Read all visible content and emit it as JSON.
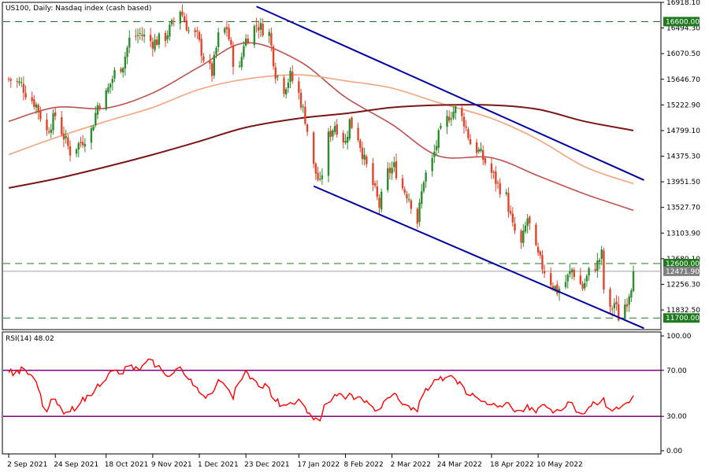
{
  "window": {
    "symbol": "US100",
    "timeframe": "Daily:",
    "description": "Nasdaq index (cash based)"
  },
  "rsi_panel": {
    "label": "RSI(14) 48.02",
    "levels": [
      "100.00",
      "70.00",
      "30.00",
      "0.00"
    ]
  },
  "colors": {
    "bull": "#2e8b2e",
    "bear": "#e0452c",
    "ma_short": "#c0504d",
    "ma_mid": "#f4a37c",
    "ma_long": "#7b1616",
    "channel": "#0000a0",
    "level_line": "#1f7a1f",
    "rsi_line": "#ff0000",
    "rsi_level": "#800080"
  },
  "chart_data": [
    {
      "type": "candlestick",
      "title": "US100, Daily: Nasdaq index (cash based)",
      "x_tick_labels": [
        "2 Sep 2021",
        "24 Sep 2021",
        "18 Oct 2021",
        "9 Nov 2021",
        "1 Dec 2021",
        "23 Dec 2021",
        "17 Jan 2022",
        "8 Feb 2022",
        "2 Mar 2022",
        "24 Mar 2022",
        "18 Apr 2022",
        "10 May 2022"
      ],
      "y_tick_labels": [
        "16918.10",
        "16494.30",
        "16070.50",
        "15646.70",
        "15222.90",
        "14799.10",
        "14375.30",
        "13951.50",
        "13527.70",
        "13103.90",
        "12680.10",
        "12256.30",
        "11832.50"
      ],
      "ylim": [
        11560,
        16918.1
      ],
      "horizontal_levels": [
        {
          "value": 16600.0,
          "label": "16600.00"
        },
        {
          "value": 12600.0,
          "label": "12600.00"
        },
        {
          "value": 11700.0,
          "label": "11700.00"
        }
      ],
      "current_price": {
        "value": 12471.9,
        "label": "12471.90"
      },
      "close_path": [
        {
          "date": "2021-09-02",
          "close": 15650
        },
        {
          "date": "2021-09-08",
          "close": 15560
        },
        {
          "date": "2021-09-10",
          "close": 15430
        },
        {
          "date": "2021-09-15",
          "close": 15220
        },
        {
          "date": "2021-09-20",
          "close": 14780
        },
        {
          "date": "2021-09-24",
          "close": 15050
        },
        {
          "date": "2021-09-28",
          "close": 14700
        },
        {
          "date": "2021-10-01",
          "close": 14450
        },
        {
          "date": "2021-10-06",
          "close": 14600
        },
        {
          "date": "2021-10-11",
          "close": 14800
        },
        {
          "date": "2021-10-14",
          "close": 15220
        },
        {
          "date": "2021-10-18",
          "close": 15400
        },
        {
          "date": "2021-10-22",
          "close": 15750
        },
        {
          "date": "2021-10-26",
          "close": 15900
        },
        {
          "date": "2021-10-29",
          "close": 16300
        },
        {
          "date": "2021-11-03",
          "close": 16400
        },
        {
          "date": "2021-11-09",
          "close": 16250
        },
        {
          "date": "2021-11-15",
          "close": 16350
        },
        {
          "date": "2021-11-19",
          "close": 16600
        },
        {
          "date": "2021-11-22",
          "close": 16800
        },
        {
          "date": "2021-11-26",
          "close": 16450
        },
        {
          "date": "2021-11-30",
          "close": 16350
        },
        {
          "date": "2021-12-03",
          "close": 16000
        },
        {
          "date": "2021-12-07",
          "close": 15750
        },
        {
          "date": "2021-12-10",
          "close": 16350
        },
        {
          "date": "2021-12-14",
          "close": 16500
        },
        {
          "date": "2021-12-17",
          "close": 15950
        },
        {
          "date": "2021-12-20",
          "close": 15800
        },
        {
          "date": "2021-12-22",
          "close": 16250
        },
        {
          "date": "2021-12-28",
          "close": 16550
        },
        {
          "date": "2022-01-03",
          "close": 16400
        },
        {
          "date": "2022-01-06",
          "close": 15750
        },
        {
          "date": "2022-01-10",
          "close": 15500
        },
        {
          "date": "2022-01-13",
          "close": 15700
        },
        {
          "date": "2022-01-17",
          "close": 15400
        },
        {
          "date": "2022-01-20",
          "close": 15000
        },
        {
          "date": "2022-01-24",
          "close": 14200
        },
        {
          "date": "2022-01-27",
          "close": 13900
        },
        {
          "date": "2022-01-31",
          "close": 14700
        },
        {
          "date": "2022-02-03",
          "close": 14900
        },
        {
          "date": "2022-02-08",
          "close": 14600
        },
        {
          "date": "2022-02-10",
          "close": 14950
        },
        {
          "date": "2022-02-14",
          "close": 14700
        },
        {
          "date": "2022-02-17",
          "close": 14300
        },
        {
          "date": "2022-02-21",
          "close": 13900
        },
        {
          "date": "2022-02-24",
          "close": 13550
        },
        {
          "date": "2022-02-28",
          "close": 14100
        },
        {
          "date": "2022-03-03",
          "close": 14200
        },
        {
          "date": "2022-03-07",
          "close": 13850
        },
        {
          "date": "2022-03-10",
          "close": 13700
        },
        {
          "date": "2022-03-14",
          "close": 13300
        },
        {
          "date": "2022-03-17",
          "close": 14000
        },
        {
          "date": "2022-03-21",
          "close": 14300
        },
        {
          "date": "2022-03-24",
          "close": 14700
        },
        {
          "date": "2022-03-29",
          "close": 15050
        },
        {
          "date": "2022-04-01",
          "close": 15150
        },
        {
          "date": "2022-04-05",
          "close": 14950
        },
        {
          "date": "2022-04-08",
          "close": 14600
        },
        {
          "date": "2022-04-12",
          "close": 14450
        },
        {
          "date": "2022-04-18",
          "close": 14100
        },
        {
          "date": "2022-04-21",
          "close": 13900
        },
        {
          "date": "2022-04-25",
          "close": 13700
        },
        {
          "date": "2022-04-28",
          "close": 13200
        },
        {
          "date": "2022-05-02",
          "close": 12900
        },
        {
          "date": "2022-05-05",
          "close": 13350
        },
        {
          "date": "2022-05-09",
          "close": 12800
        },
        {
          "date": "2022-05-12",
          "close": 12550
        },
        {
          "date": "2022-05-16",
          "close": 12300
        },
        {
          "date": "2022-05-19",
          "close": 12150
        },
        {
          "date": "2022-05-23",
          "close": 12300
        },
        {
          "date": "2022-05-26",
          "close": 12500
        },
        {
          "date": "2022-05-31",
          "close": 12200
        },
        {
          "date": "2022-06-03",
          "close": 12450
        },
        {
          "date": "2022-06-07",
          "close": 12600
        },
        {
          "date": "2022-06-09",
          "close": 12750
        },
        {
          "date": "2022-06-10",
          "close": 12180
        },
        {
          "date": "2022-06-13",
          "close": 11800
        },
        {
          "date": "2022-06-15",
          "close": 11950
        },
        {
          "date": "2022-06-16",
          "close": 11850
        },
        {
          "date": "2022-06-17",
          "close": 11720
        },
        {
          "date": "2022-06-21",
          "close": 12000
        },
        {
          "date": "2022-06-23",
          "close": 12250
        },
        {
          "date": "2022-06-24",
          "close": 12471.9
        }
      ],
      "moving_averages": [
        {
          "style": "short",
          "points": [
            {
              "date": "2021-09-02",
              "value": 14950
            },
            {
              "date": "2021-09-24",
              "value": 15180
            },
            {
              "date": "2021-10-18",
              "value": 15170
            },
            {
              "date": "2021-11-09",
              "value": 15420
            },
            {
              "date": "2021-12-01",
              "value": 15850
            },
            {
              "date": "2021-12-23",
              "value": 16250
            },
            {
              "date": "2022-01-17",
              "value": 15950
            },
            {
              "date": "2022-02-08",
              "value": 15350
            },
            {
              "date": "2022-03-02",
              "value": 14900
            },
            {
              "date": "2022-03-24",
              "value": 14380
            },
            {
              "date": "2022-04-18",
              "value": 14350
            },
            {
              "date": "2022-05-10",
              "value": 14050
            },
            {
              "date": "2022-06-01",
              "value": 13750
            },
            {
              "date": "2022-06-24",
              "value": 13480
            }
          ]
        },
        {
          "style": "mid",
          "points": [
            {
              "date": "2021-09-02",
              "value": 14400
            },
            {
              "date": "2021-09-24",
              "value": 14680
            },
            {
              "date": "2021-10-18",
              "value": 14950
            },
            {
              "date": "2021-11-09",
              "value": 15180
            },
            {
              "date": "2021-12-01",
              "value": 15480
            },
            {
              "date": "2021-12-23",
              "value": 15650
            },
            {
              "date": "2022-01-17",
              "value": 15720
            },
            {
              "date": "2022-02-08",
              "value": 15620
            },
            {
              "date": "2022-03-02",
              "value": 15500
            },
            {
              "date": "2022-03-24",
              "value": 15260
            },
            {
              "date": "2022-04-18",
              "value": 15000
            },
            {
              "date": "2022-05-10",
              "value": 14650
            },
            {
              "date": "2022-06-01",
              "value": 14200
            },
            {
              "date": "2022-06-24",
              "value": 13920
            }
          ]
        },
        {
          "style": "long",
          "points": [
            {
              "date": "2021-09-02",
              "value": 13850
            },
            {
              "date": "2021-09-24",
              "value": 14000
            },
            {
              "date": "2021-10-18",
              "value": 14200
            },
            {
              "date": "2021-11-09",
              "value": 14400
            },
            {
              "date": "2021-12-01",
              "value": 14620
            },
            {
              "date": "2021-12-23",
              "value": 14850
            },
            {
              "date": "2022-01-17",
              "value": 15000
            },
            {
              "date": "2022-02-08",
              "value": 15080
            },
            {
              "date": "2022-03-02",
              "value": 15180
            },
            {
              "date": "2022-03-24",
              "value": 15220
            },
            {
              "date": "2022-04-18",
              "value": 15220
            },
            {
              "date": "2022-05-10",
              "value": 15150
            },
            {
              "date": "2022-06-01",
              "value": 14950
            },
            {
              "date": "2022-06-24",
              "value": 14800
            }
          ]
        }
      ],
      "channel_lines": [
        {
          "from": {
            "date": "2021-12-28",
            "value": 16850
          },
          "to": {
            "date": "2022-06-29",
            "value": 13980
          }
        },
        {
          "from": {
            "date": "2022-01-24",
            "value": 13880
          },
          "to": {
            "date": "2022-06-29",
            "value": 11530
          }
        }
      ]
    },
    {
      "type": "line",
      "title": "RSI(14) 48.02",
      "ylim": [
        0,
        100
      ],
      "y_tick_labels": [
        "100.00",
        "70.00",
        "30.00",
        "0.00"
      ],
      "levels": [
        70,
        30
      ],
      "x": [
        "2021-09-02",
        "2021-09-10",
        "2021-09-15",
        "2021-09-20",
        "2021-09-24",
        "2021-09-28",
        "2021-10-01",
        "2021-10-06",
        "2021-10-11",
        "2021-10-14",
        "2021-10-18",
        "2021-10-22",
        "2021-10-26",
        "2021-10-29",
        "2021-11-03",
        "2021-11-09",
        "2021-11-15",
        "2021-11-19",
        "2021-11-22",
        "2021-11-26",
        "2021-11-30",
        "2021-12-03",
        "2021-12-07",
        "2021-12-10",
        "2021-12-14",
        "2021-12-17",
        "2021-12-20",
        "2021-12-23",
        "2021-12-28",
        "2022-01-03",
        "2022-01-06",
        "2022-01-10",
        "2022-01-13",
        "2022-01-17",
        "2022-01-20",
        "2022-01-24",
        "2022-01-27",
        "2022-01-31",
        "2022-02-03",
        "2022-02-08",
        "2022-02-10",
        "2022-02-14",
        "2022-02-17",
        "2022-02-21",
        "2022-02-24",
        "2022-02-28",
        "2022-03-03",
        "2022-03-07",
        "2022-03-10",
        "2022-03-14",
        "2022-03-17",
        "2022-03-21",
        "2022-03-24",
        "2022-03-29",
        "2022-04-01",
        "2022-04-05",
        "2022-04-08",
        "2022-04-12",
        "2022-04-18",
        "2022-04-21",
        "2022-04-25",
        "2022-04-28",
        "2022-05-02",
        "2022-05-05",
        "2022-05-09",
        "2022-05-12",
        "2022-05-16",
        "2022-05-19",
        "2022-05-23",
        "2022-05-26",
        "2022-05-31",
        "2022-06-03",
        "2022-06-07",
        "2022-06-10",
        "2022-06-13",
        "2022-06-16",
        "2022-06-21",
        "2022-06-24"
      ],
      "values": [
        68,
        70,
        60,
        34,
        45,
        32,
        34,
        42,
        48,
        58,
        62,
        70,
        67,
        74,
        70,
        79,
        66,
        68,
        73,
        62,
        55,
        48,
        50,
        62,
        55,
        45,
        60,
        70,
        60,
        55,
        43,
        40,
        42,
        45,
        38,
        27,
        26,
        42,
        49,
        45,
        50,
        47,
        42,
        38,
        36,
        46,
        50,
        40,
        39,
        34,
        50,
        58,
        62,
        65,
        62,
        55,
        48,
        45,
        40,
        38,
        42,
        36,
        35,
        40,
        33,
        40,
        36,
        36,
        38,
        42,
        32,
        38,
        40,
        46,
        36,
        38,
        42,
        48.02
      ]
    }
  ]
}
